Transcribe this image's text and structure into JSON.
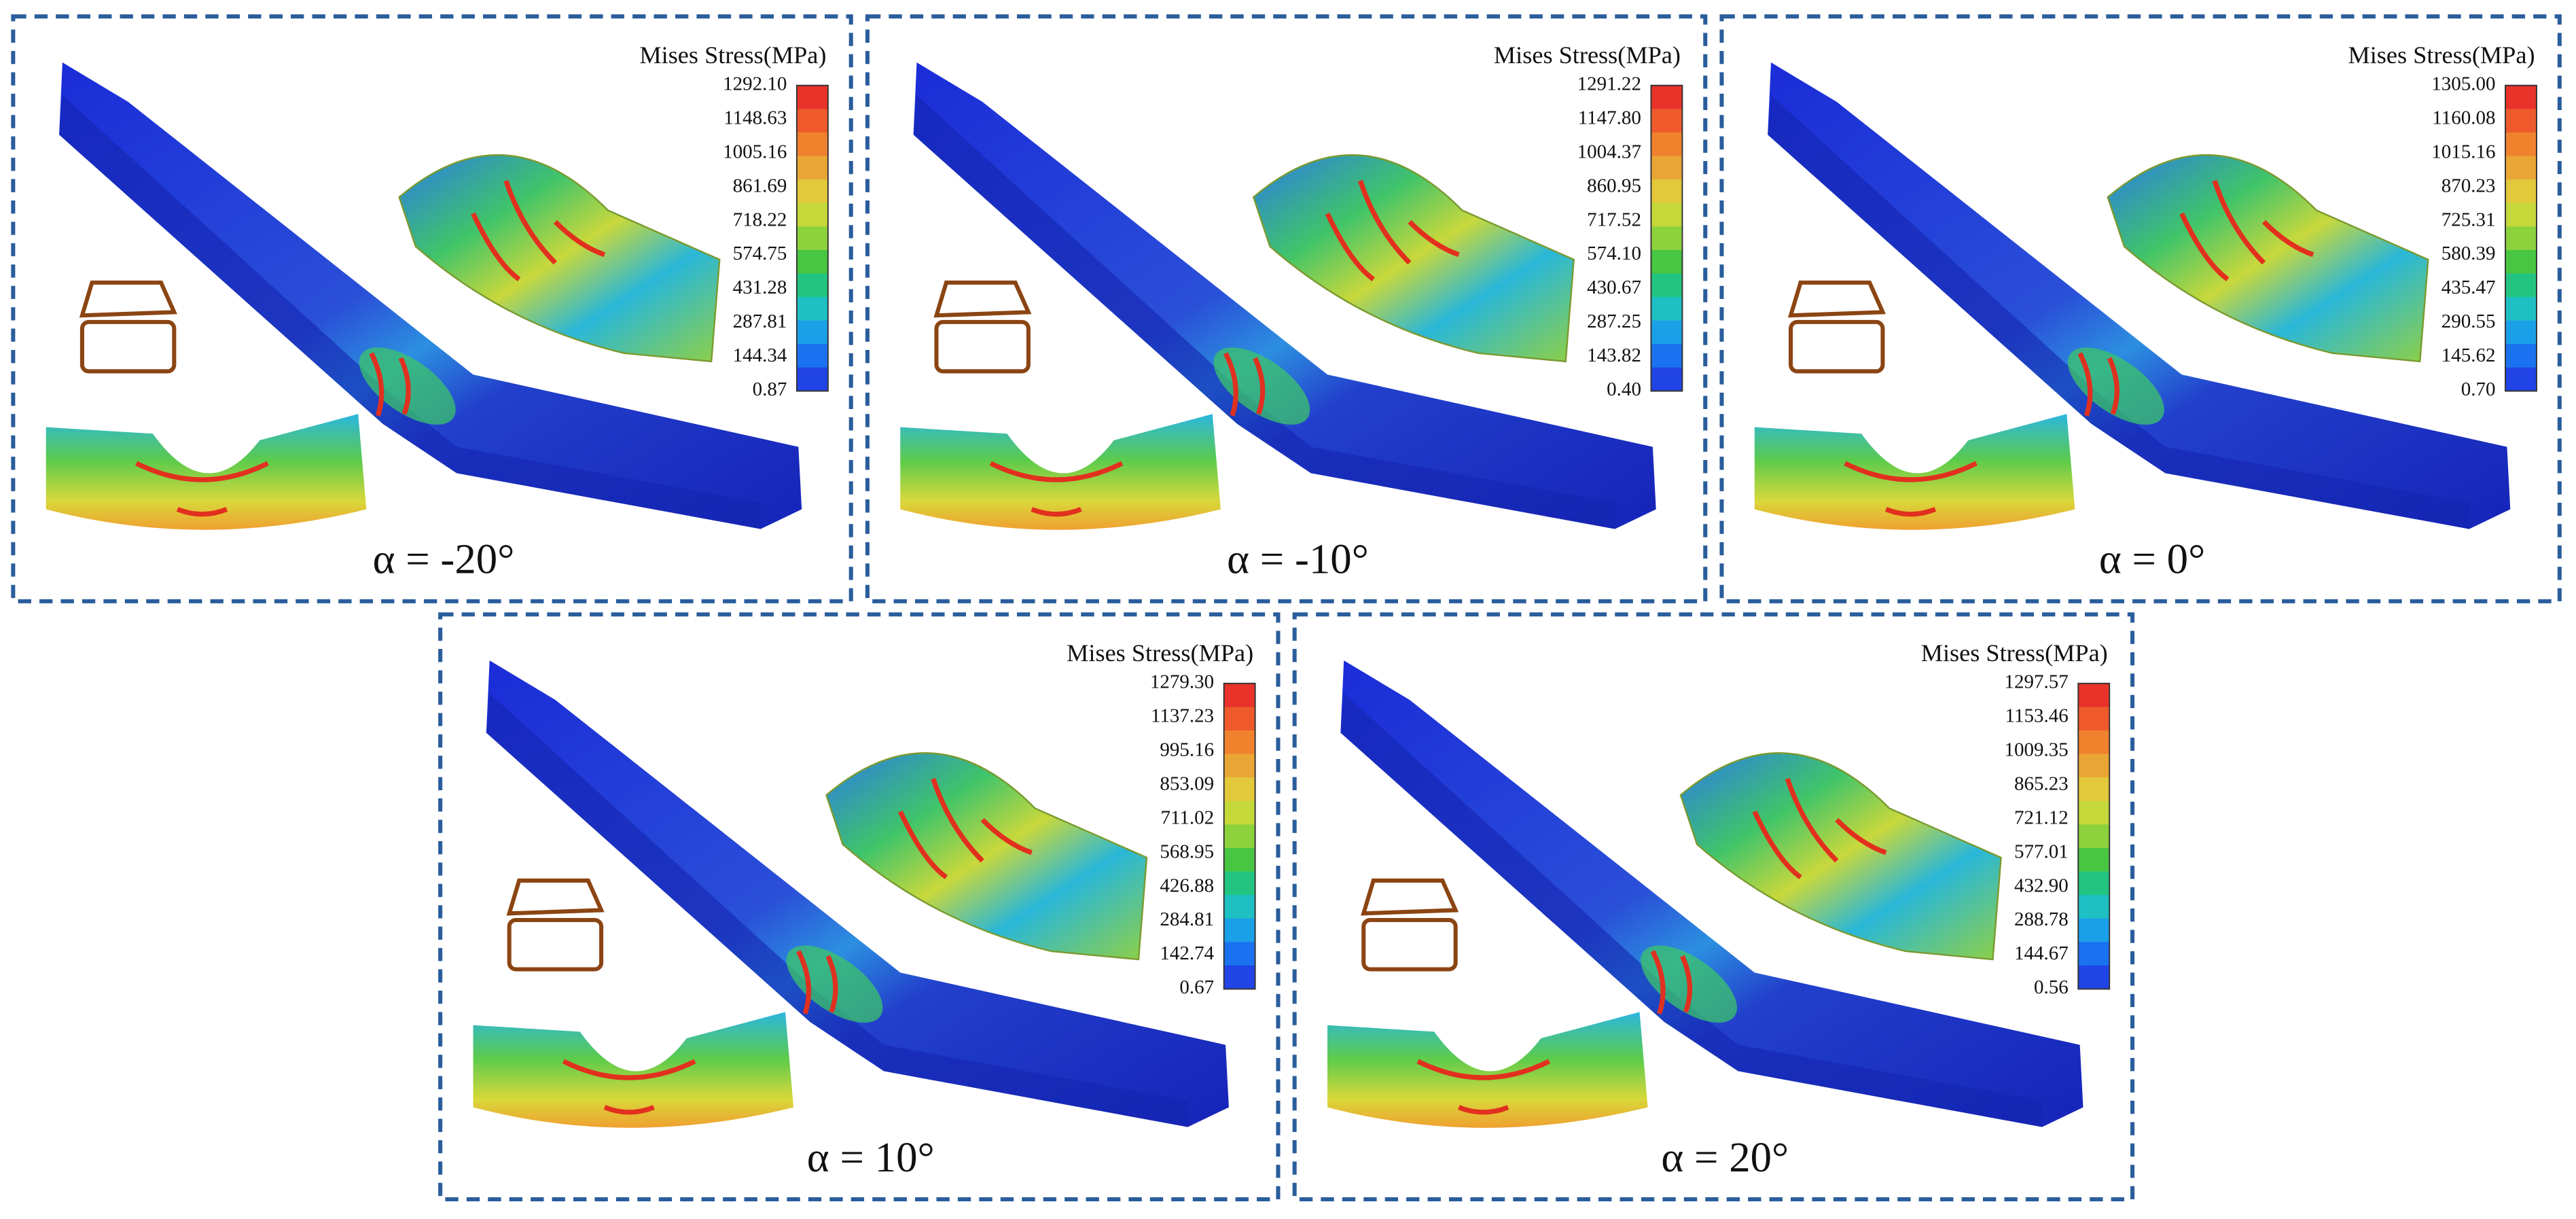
{
  "panels": [
    {
      "legend_title": "Mises Stress(MPa)",
      "scale_labels": [
        "1292.10",
        "1148.63",
        "1005.16",
        "861.69",
        "718.22",
        "574.75",
        "431.28",
        "287.81",
        "144.34",
        "0.87"
      ],
      "caption": "α = -20°"
    },
    {
      "legend_title": "Mises Stress(MPa)",
      "scale_labels": [
        "1291.22",
        "1147.80",
        "1004.37",
        "860.95",
        "717.52",
        "574.10",
        "430.67",
        "287.25",
        "143.82",
        "0.40"
      ],
      "caption": "α = -10°"
    },
    {
      "legend_title": "Mises Stress(MPa)",
      "scale_labels": [
        "1305.00",
        "1160.08",
        "1015.16",
        "870.23",
        "725.31",
        "580.39",
        "435.47",
        "290.55",
        "145.62",
        "0.70"
      ],
      "caption": "α = 0°"
    },
    {
      "legend_title": "Mises Stress(MPa)",
      "scale_labels": [
        "1279.30",
        "1137.23",
        "995.16",
        "853.09",
        "711.02",
        "568.95",
        "426.88",
        "284.81",
        "142.74",
        "0.67"
      ],
      "caption": "α = 10°"
    },
    {
      "legend_title": "Mises Stress(MPa)",
      "scale_labels": [
        "1297.57",
        "1153.46",
        "1009.35",
        "865.23",
        "721.12",
        "577.01",
        "432.90",
        "288.78",
        "144.67",
        "0.56"
      ],
      "caption": "α = 20°"
    }
  ]
}
